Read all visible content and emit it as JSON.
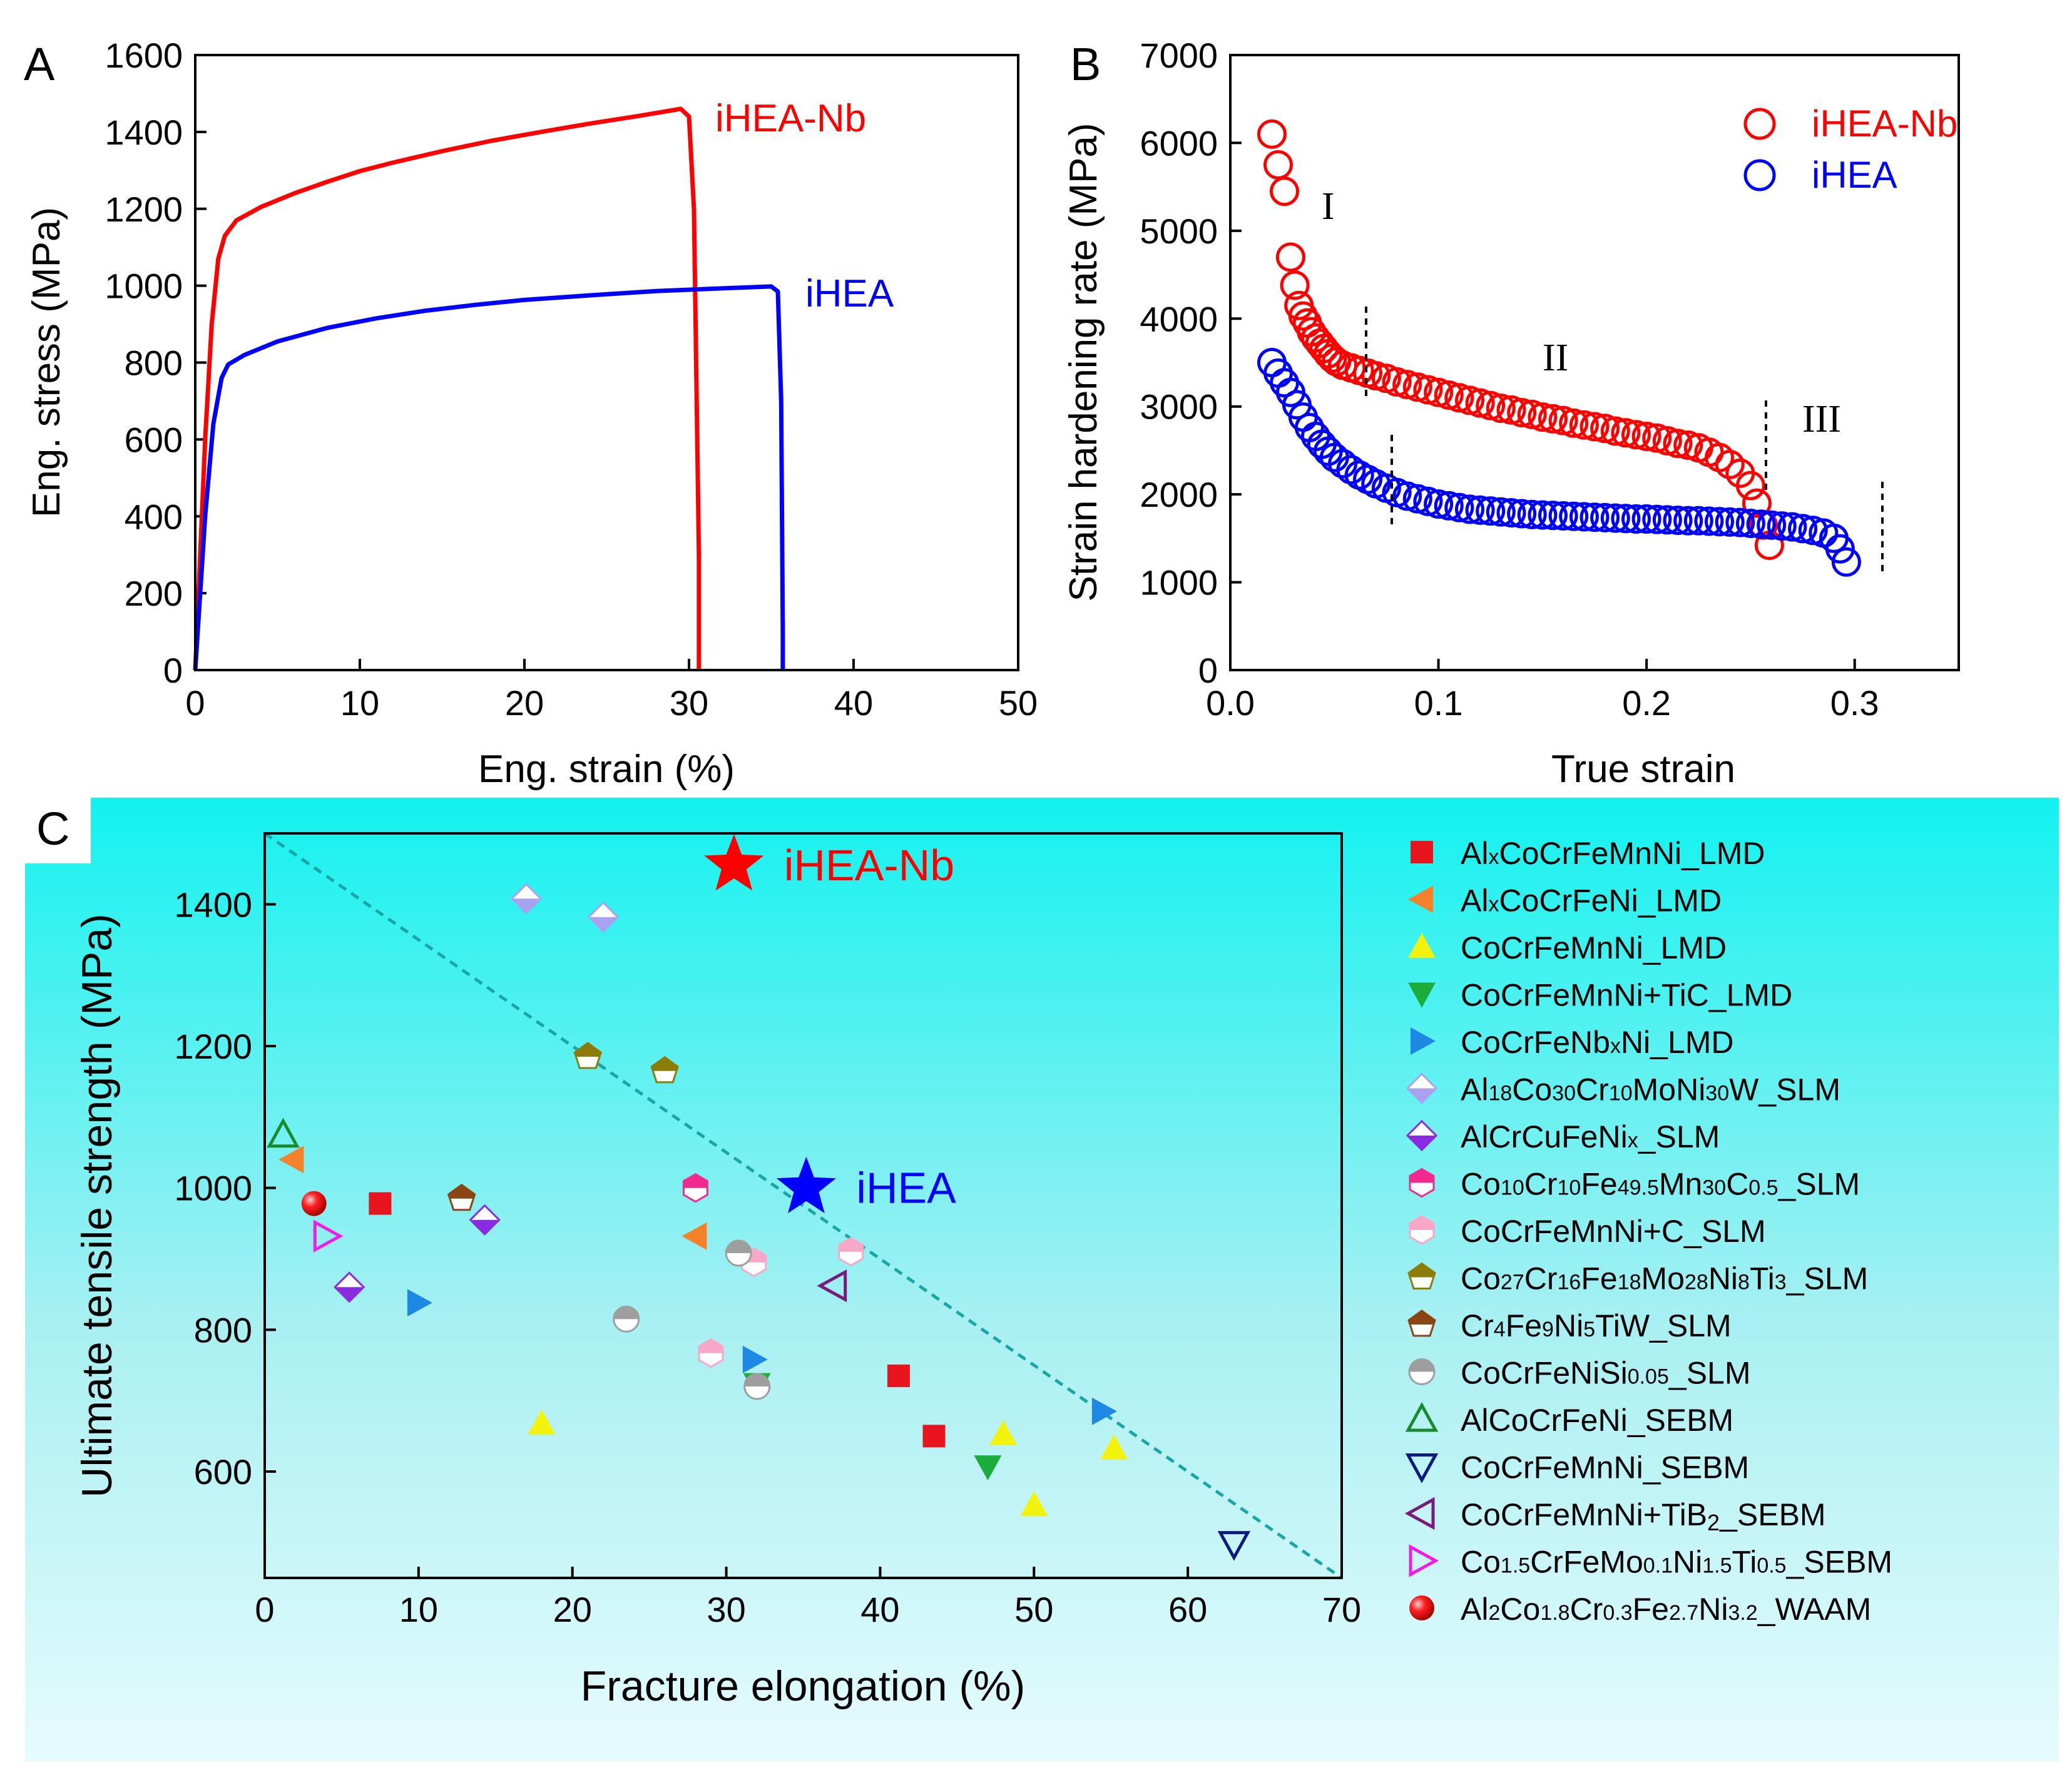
{
  "chart_data": [
    {
      "panel": "A",
      "type": "line",
      "xlabel": "Eng. strain (%)",
      "ylabel": "Eng. stress (MPa)",
      "xlim": [
        0,
        50
      ],
      "ylim": [
        0,
        1600
      ],
      "xticks": [
        0,
        10,
        20,
        30,
        40,
        50
      ],
      "yticks": [
        0,
        200,
        400,
        600,
        800,
        1000,
        1200,
        1400,
        1600
      ],
      "series": [
        {
          "name": "iHEA-Nb",
          "color": "#ff0000",
          "x": [
            0,
            0.6,
            1.0,
            1.4,
            1.8,
            2.5,
            4,
            6,
            8,
            10,
            12,
            15,
            18,
            21,
            24,
            27,
            29.5,
            30.0,
            30.3,
            30.6,
            30.6
          ],
          "y": [
            0,
            600,
            900,
            1070,
            1130,
            1170,
            1205,
            1240,
            1270,
            1298,
            1320,
            1350,
            1377,
            1400,
            1422,
            1442,
            1460,
            1440,
            1200,
            300,
            0
          ]
        },
        {
          "name": "iHEA",
          "color": "#0000ff",
          "x": [
            0,
            0.6,
            1.1,
            1.6,
            2.0,
            3,
            5,
            8,
            11,
            14,
            17,
            20,
            24,
            28,
            32,
            35,
            35.4,
            35.6,
            35.7,
            35.7
          ],
          "y": [
            0,
            400,
            640,
            760,
            795,
            820,
            855,
            890,
            915,
            935,
            950,
            963,
            975,
            986,
            993,
            998,
            985,
            700,
            100,
            0
          ]
        }
      ],
      "annotations": [
        "iHEA-Nb",
        "iHEA"
      ]
    },
    {
      "panel": "B",
      "type": "scatter",
      "xlabel": "True strain",
      "ylabel": "Strain hardening rate (MPa)",
      "xlim": [
        0.0,
        0.35
      ],
      "ylim": [
        0,
        7000
      ],
      "xticks": [
        0.0,
        0.1,
        0.2,
        0.3
      ],
      "xtick_labels": [
        "0.0",
        "0.1",
        "0.2",
        "0.3"
      ],
      "yticks": [
        0,
        1000,
        2000,
        3000,
        4000,
        5000,
        6000,
        7000
      ],
      "legend": [
        "iHEA-Nb",
        "iHEA"
      ],
      "series": [
        {
          "name": "iHEA-Nb",
          "color": "#ff0000",
          "x": [
            0.02,
            0.023,
            0.026,
            0.029,
            0.031,
            0.033,
            0.035,
            0.037,
            0.039,
            0.041,
            0.043,
            0.045,
            0.047,
            0.049,
            0.051,
            0.054,
            0.058,
            0.062,
            0.066,
            0.07,
            0.075,
            0.08,
            0.085,
            0.09,
            0.095,
            0.1,
            0.105,
            0.11,
            0.115,
            0.12,
            0.125,
            0.13,
            0.135,
            0.14,
            0.145,
            0.15,
            0.155,
            0.16,
            0.165,
            0.17,
            0.175,
            0.18,
            0.185,
            0.19,
            0.195,
            0.2,
            0.205,
            0.21,
            0.215,
            0.22,
            0.225,
            0.23,
            0.235,
            0.24,
            0.245,
            0.25,
            0.253,
            0.256,
            0.259
          ],
          "y": [
            6100,
            5750,
            5450,
            4700,
            4380,
            4150,
            4030,
            3950,
            3850,
            3780,
            3720,
            3660,
            3600,
            3550,
            3510,
            3470,
            3440,
            3410,
            3380,
            3350,
            3320,
            3280,
            3250,
            3220,
            3190,
            3160,
            3130,
            3100,
            3070,
            3040,
            3010,
            2980,
            2960,
            2930,
            2910,
            2880,
            2860,
            2840,
            2810,
            2790,
            2770,
            2750,
            2720,
            2700,
            2680,
            2660,
            2640,
            2610,
            2580,
            2560,
            2530,
            2480,
            2420,
            2340,
            2240,
            2100,
            1900,
            1650,
            1420
          ]
        },
        {
          "name": "iHEA",
          "color": "#0000ff",
          "x": [
            0.02,
            0.023,
            0.026,
            0.029,
            0.032,
            0.035,
            0.038,
            0.041,
            0.044,
            0.047,
            0.05,
            0.054,
            0.058,
            0.062,
            0.066,
            0.07,
            0.075,
            0.08,
            0.085,
            0.09,
            0.095,
            0.1,
            0.105,
            0.11,
            0.115,
            0.12,
            0.125,
            0.13,
            0.135,
            0.14,
            0.145,
            0.15,
            0.155,
            0.16,
            0.165,
            0.17,
            0.175,
            0.18,
            0.185,
            0.19,
            0.195,
            0.2,
            0.205,
            0.21,
            0.215,
            0.22,
            0.225,
            0.23,
            0.235,
            0.24,
            0.245,
            0.25,
            0.255,
            0.26,
            0.265,
            0.27,
            0.275,
            0.28,
            0.285,
            0.29,
            0.293,
            0.296
          ],
          "y": [
            3500,
            3380,
            3270,
            3160,
            3020,
            2880,
            2760,
            2660,
            2570,
            2490,
            2420,
            2350,
            2280,
            2220,
            2170,
            2120,
            2070,
            2020,
            1980,
            1950,
            1920,
            1890,
            1870,
            1850,
            1830,
            1820,
            1810,
            1800,
            1790,
            1780,
            1770,
            1765,
            1760,
            1755,
            1750,
            1745,
            1740,
            1735,
            1730,
            1725,
            1720,
            1720,
            1715,
            1710,
            1705,
            1700,
            1700,
            1695,
            1690,
            1685,
            1680,
            1670,
            1660,
            1650,
            1640,
            1630,
            1610,
            1590,
            1560,
            1500,
            1380,
            1230
          ]
        }
      ],
      "stage_labels": [
        "I",
        "II",
        "III"
      ]
    },
    {
      "panel": "C",
      "type": "scatter",
      "xlabel": "Fracture elongation (%)",
      "ylabel": "Ultimate tensile strength (MPa)",
      "xlim": [
        0,
        70
      ],
      "ylim": [
        450,
        1500
      ],
      "xticks": [
        0,
        10,
        20,
        30,
        40,
        50,
        60,
        70
      ],
      "yticks": [
        600,
        800,
        1000,
        1200,
        1400
      ],
      "trend_line": {
        "x": [
          0,
          70
        ],
        "y": [
          1500,
          450
        ]
      },
      "highlights": [
        {
          "name": "iHEA-Nb",
          "x": 30.5,
          "y": 1455,
          "color": "#ff0000"
        },
        {
          "name": "iHEA",
          "x": 35.2,
          "y": 1000,
          "color": "#0000ff"
        }
      ],
      "series": [
        {
          "name": "AlxCoCrFeMnNi_LMD",
          "label_parts": [
            [
              "Al",
              ""
            ],
            [
              "x",
              "s"
            ],
            [
              "CoCrFeMnNi_LMD",
              ""
            ]
          ],
          "marker": "square",
          "color": "#e8141e",
          "x": [
            7.5,
            41.2,
            43.5
          ],
          "y": [
            978,
            735,
            650
          ]
        },
        {
          "name": "AlxCoCrFeNi_LMD",
          "label_parts": [
            [
              "Al",
              ""
            ],
            [
              "x",
              "s"
            ],
            [
              "CoCrFeNi_LMD",
              ""
            ]
          ],
          "marker": "tri-left",
          "color": "#f5822a",
          "x": [
            1.8,
            28
          ],
          "y": [
            1040,
            932
          ]
        },
        {
          "name": "CoCrFeMnNi_LMD",
          "label_parts": [
            [
              "CoCrFeMnNi_LMD",
              ""
            ]
          ],
          "marker": "tri-up",
          "color": "#f2f20d",
          "x": [
            18,
            48,
            50,
            55.2
          ],
          "y": [
            668,
            653,
            553,
            633
          ]
        },
        {
          "name": "CoCrFeMnNi+TiC_LMD",
          "label_parts": [
            [
              "CoCrFeMnNi+TiC_LMD",
              ""
            ]
          ],
          "marker": "tri-down",
          "color": "#1bad3b",
          "x": [
            47,
            32
          ],
          "y": [
            607,
            723
          ]
        },
        {
          "name": "CoCrFeNbxNi_LMD",
          "label_parts": [
            [
              "CoCrFeNb",
              ""
            ],
            [
              "x",
              "s"
            ],
            [
              "Ni_LMD",
              ""
            ]
          ],
          "marker": "tri-right",
          "color": "#1e88e5",
          "x": [
            10,
            31.8,
            54.5
          ],
          "y": [
            838,
            758,
            685
          ]
        },
        {
          "name": "Al18Co30Cr10MoNi30W_SLM",
          "label_parts": [
            [
              "Al",
              ""
            ],
            [
              "18",
              "s"
            ],
            [
              "Co",
              ""
            ],
            [
              "30",
              "s"
            ],
            [
              "Cr",
              ""
            ],
            [
              "10",
              "s"
            ],
            [
              "MoNi",
              ""
            ],
            [
              "30",
              "s"
            ],
            [
              "W_SLM",
              ""
            ]
          ],
          "marker": "diamond-half",
          "color": "#a9a2f0",
          "x": [
            17,
            22
          ],
          "y": [
            1408,
            1382
          ]
        },
        {
          "name": "AlCrCuFeNix_SLM",
          "label_parts": [
            [
              "AlCrCuFeNi",
              ""
            ],
            [
              "x",
              "s"
            ],
            [
              "_SLM",
              ""
            ]
          ],
          "marker": "diamond-half",
          "color": "#8a2be2",
          "x": [
            5.5,
            14.3
          ],
          "y": [
            860,
            955
          ]
        },
        {
          "name": "Co10Cr10Fe49.5Mn30C0.5_SLM",
          "label_parts": [
            [
              "Co",
              ""
            ],
            [
              "10",
              "s"
            ],
            [
              "Cr",
              ""
            ],
            [
              "10",
              "s"
            ],
            [
              "Fe",
              ""
            ],
            [
              "49.5",
              "s"
            ],
            [
              "Mn",
              ""
            ],
            [
              "30",
              "s"
            ],
            [
              "C",
              ""
            ],
            [
              "0.5",
              "s"
            ],
            [
              "_SLM",
              ""
            ]
          ],
          "marker": "hex-half",
          "color": "#f02a8f",
          "x": [
            28
          ],
          "y": [
            1000
          ]
        },
        {
          "name": "CoCrFeMnNi+C_SLM",
          "label_parts": [
            [
              "CoCrFeMnNi+C_SLM",
              ""
            ]
          ],
          "marker": "hex-half",
          "color": "#f7a8c8",
          "x": [
            29,
            31.8,
            38.1
          ],
          "y": [
            767,
            895,
            910
          ]
        },
        {
          "name": "Co27Cr16Fe18Mo28Ni8Ti3_SLM",
          "label_parts": [
            [
              "Co",
              ""
            ],
            [
              "27",
              "s"
            ],
            [
              "Cr",
              ""
            ],
            [
              "16",
              "s"
            ],
            [
              "Fe",
              ""
            ],
            [
              "18",
              "s"
            ],
            [
              "Mo",
              ""
            ],
            [
              "28",
              "s"
            ],
            [
              "Ni",
              ""
            ],
            [
              "8",
              "s"
            ],
            [
              "Ti",
              ""
            ],
            [
              "3",
              "s"
            ],
            [
              "_SLM",
              ""
            ]
          ],
          "marker": "penta-half",
          "color": "#8c7d0a",
          "x": [
            21,
            26
          ],
          "y": [
            1185,
            1165
          ]
        },
        {
          "name": "Cr4Fe9Ni5TiW_SLM",
          "label_parts": [
            [
              "Cr",
              ""
            ],
            [
              "4",
              "s"
            ],
            [
              "Fe",
              ""
            ],
            [
              "9",
              "s"
            ],
            [
              "Ni",
              ""
            ],
            [
              "5",
              "s"
            ],
            [
              "TiW_SLM",
              ""
            ]
          ],
          "marker": "penta-half",
          "color": "#8b4513",
          "x": [
            12.8
          ],
          "y": [
            985
          ]
        },
        {
          "name": "CoCrFeNiSi0.05_SLM",
          "label_parts": [
            [
              "CoCrFeNiSi",
              ""
            ],
            [
              "0.05",
              "s"
            ],
            [
              "_SLM",
              ""
            ]
          ],
          "marker": "circle-half",
          "color": "#9e9e9e",
          "x": [
            23.5,
            30.8,
            32
          ],
          "y": [
            815,
            908,
            720
          ]
        },
        {
          "name": "AlCoCrFeNi_SEBM",
          "label_parts": [
            [
              "AlCoCrFeNi_SEBM",
              ""
            ]
          ],
          "marker": "tri-up-open",
          "color": "#1a8a2e",
          "x": [
            1.2
          ],
          "y": [
            1075
          ]
        },
        {
          "name": "CoCrFeMnNi_SEBM",
          "label_parts": [
            [
              "CoCrFeMnNi_SEBM",
              ""
            ]
          ],
          "marker": "tri-down-open",
          "color": "#0d1a80",
          "x": [
            63
          ],
          "y": [
            498
          ]
        },
        {
          "name": "CoCrFeMnNi+TiB2_SEBM",
          "label_parts": [
            [
              "CoCrFeMnNi+TiB",
              ""
            ],
            [
              "2",
              "b"
            ],
            [
              "_SEBM",
              ""
            ]
          ],
          "marker": "tri-left-open",
          "color": "#7a1a7a",
          "x": [
            37
          ],
          "y": [
            862
          ]
        },
        {
          "name": "Co1.5CrFeMo0.1Ni1.5Ti0.5_SEBM",
          "label_parts": [
            [
              "Co",
              ""
            ],
            [
              "1.5",
              "s"
            ],
            [
              "CrFeMo",
              ""
            ],
            [
              "0.1",
              "s"
            ],
            [
              "Ni",
              ""
            ],
            [
              "1.5",
              "s"
            ],
            [
              "Ti",
              ""
            ],
            [
              "0.5",
              "s"
            ],
            [
              "_SEBM",
              ""
            ]
          ],
          "marker": "tri-right-open",
          "color": "#ee1ee8",
          "x": [
            4
          ],
          "y": [
            932
          ]
        },
        {
          "name": "Al2Co1.8Cr0.3Fe2.7Ni3.2_WAAM",
          "label_parts": [
            [
              "Al",
              ""
            ],
            [
              "2",
              "s"
            ],
            [
              "Co",
              ""
            ],
            [
              "1.8",
              "s"
            ],
            [
              "Cr",
              ""
            ],
            [
              "0.3",
              "s"
            ],
            [
              "Fe",
              ""
            ],
            [
              "2.7",
              "s"
            ],
            [
              "Ni",
              ""
            ],
            [
              "3.2",
              "s"
            ],
            [
              "_WAAM",
              ""
            ]
          ],
          "marker": "sphere",
          "color": "#e8141e",
          "x": [
            3.2
          ],
          "y": [
            978
          ]
        }
      ]
    }
  ],
  "panel_labels": [
    "A",
    "B",
    "C"
  ],
  "colors": {
    "red": "#ff0000",
    "blue": "#0000ff",
    "cyan_top": "#12f2f0",
    "trend": "#1aa6a6"
  }
}
